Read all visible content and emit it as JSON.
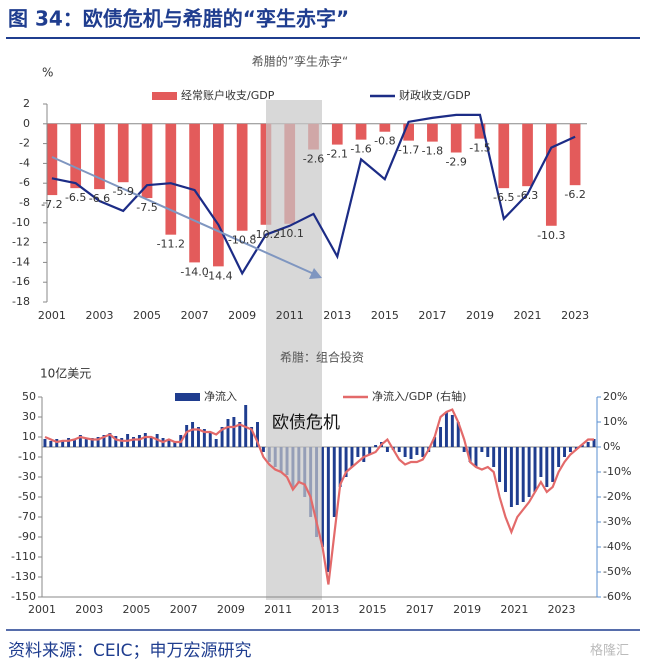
{
  "header": {
    "title": "图 34：欧债危机与希腊的“孪生赤字”"
  },
  "source": "资料来源：CEIC；申万宏源研究",
  "watermark": "格隆汇",
  "chart_data": [
    {
      "type": "bar",
      "title": "希腊的”孪生赤字“",
      "y_label": "%",
      "categories": [
        "2001",
        null,
        "2003",
        null,
        "2005",
        null,
        "2007",
        null,
        "2009",
        null,
        "2011",
        null,
        "2013",
        null,
        "2015",
        null,
        "2017",
        null,
        "2019",
        null,
        "2021",
        null,
        "2023"
      ],
      "ylim": [
        -18,
        2
      ],
      "yticks": [
        2,
        0,
        -2,
        -4,
        -6,
        -8,
        -10,
        -12,
        -14,
        -16,
        -18
      ],
      "series": [
        {
          "name": "经常账户收支/GDP",
          "type": "bar",
          "color": "#e35b5b",
          "values": [
            -7.2,
            -6.5,
            -6.6,
            -5.9,
            -7.5,
            -11.2,
            -14.0,
            -14.4,
            -10.8,
            -10.2,
            -10.1,
            -2.6,
            -2.1,
            -1.6,
            -0.8,
            -1.7,
            -1.8,
            -2.9,
            -1.5,
            -6.5,
            -6.3,
            -10.3,
            -6.2
          ],
          "value_labels": [
            "-7.2",
            "-6.5",
            "-6.6",
            "-5.9",
            "-7.5",
            "-11.2",
            "-14.0",
            "-14.4",
            "-10.8",
            "-10.2",
            "-10.1",
            "-2.6",
            "-2.1",
            "-1.6",
            "-0.8",
            "-1.7",
            "-1.8",
            "-2.9",
            "-1.5",
            "-6.5",
            "-6.3",
            "-10.3",
            "-6.2"
          ]
        },
        {
          "name": "财政收支/GDP",
          "type": "line",
          "color": "#1c2c86",
          "values": [
            -5.5,
            -6.0,
            -7.8,
            -8.8,
            -6.2,
            -6.0,
            -6.7,
            -10.2,
            -15.1,
            -11.2,
            -10.3,
            -9.1,
            -13.4,
            -3.6,
            -5.6,
            0.2,
            0.6,
            0.9,
            0.9,
            -9.6,
            -7.1,
            -2.4,
            -1.3
          ]
        }
      ]
    },
    {
      "type": "bar",
      "title": "希腊：组合投资",
      "y_label": "10亿美元",
      "annotation": "欧债危机",
      "categories": [
        "2001",
        null,
        null,
        null,
        null,
        null,
        null,
        null,
        "2003",
        null,
        null,
        null,
        null,
        null,
        null,
        null,
        "2005",
        null,
        null,
        null,
        null,
        null,
        null,
        null,
        "2007",
        null,
        null,
        null,
        null,
        null,
        null,
        null,
        "2009",
        null,
        null,
        null,
        null,
        null,
        null,
        null,
        "2011",
        null,
        null,
        null,
        null,
        null,
        null,
        null,
        "2013",
        null,
        null,
        null,
        null,
        null,
        null,
        null,
        "2015",
        null,
        null,
        null,
        null,
        null,
        null,
        null,
        "2017",
        null,
        null,
        null,
        null,
        null,
        null,
        null,
        "2019",
        null,
        null,
        null,
        null,
        null,
        null,
        null,
        "2021",
        null,
        null,
        null,
        null,
        null,
        null,
        null,
        "2023",
        null,
        null,
        null,
        null,
        null
      ],
      "ylim": [
        -150,
        50
      ],
      "yticks": [
        50,
        30,
        10,
        -10,
        -30,
        -50,
        -70,
        -90,
        -110,
        -130,
        -150
      ],
      "y2lim": [
        -60,
        20
      ],
      "y2ticks": [
        {
          "value": 20,
          "label": "20%"
        },
        {
          "value": 10,
          "label": "10%"
        },
        {
          "value": 0,
          "label": "0%"
        },
        {
          "value": -10,
          "label": "-10%"
        },
        {
          "value": -20,
          "label": "-20%"
        },
        {
          "value": -30,
          "label": "-30%"
        },
        {
          "value": -40,
          "label": "-40%"
        },
        {
          "value": -50,
          "label": "-50%"
        },
        {
          "value": -60,
          "label": "-60%"
        }
      ],
      "series": [
        {
          "name": "净流入",
          "type": "bar",
          "color": "#1f3d8f",
          "values": [
            8,
            6,
            8,
            7,
            9,
            7,
            12,
            8,
            9,
            10,
            12,
            14,
            11,
            9,
            13,
            10,
            12,
            14,
            10,
            13,
            9,
            8,
            6,
            12,
            22,
            25,
            20,
            18,
            15,
            8,
            20,
            28,
            30,
            25,
            42,
            20,
            25,
            -5,
            -15,
            -20,
            -25,
            -28,
            -40,
            -35,
            -50,
            -70,
            -90,
            -100,
            -125,
            -70,
            -40,
            -30,
            -20,
            -10,
            -15,
            -8,
            2,
            5,
            -5,
            -3,
            -5,
            -10,
            -12,
            -8,
            -10,
            -5,
            10,
            20,
            35,
            32,
            25,
            -5,
            -15,
            -20,
            -5,
            -10,
            -20,
            -35,
            -45,
            -60,
            -58,
            -55,
            -50,
            -45,
            -30,
            -40,
            -35,
            -20,
            -10,
            -5,
            -2,
            2,
            5,
            8
          ]
        },
        {
          "name": "净流入/GDP (右轴)",
          "type": "line",
          "axis": "y2",
          "color": "#e36a6a",
          "values": [
            4,
            3,
            2,
            2.5,
            2.5,
            3,
            4,
            3.5,
            3,
            3,
            4,
            5,
            3,
            2.5,
            2.5,
            3,
            3,
            4,
            4,
            3,
            2,
            3,
            2,
            2,
            6,
            7,
            7,
            6,
            6,
            5,
            7,
            8,
            8,
            9,
            8,
            7,
            2,
            -4,
            -7,
            -9,
            -10,
            -12,
            -17,
            -14,
            -15,
            -20,
            -30,
            -40,
            -55,
            -35,
            -15,
            -10,
            -8,
            -6,
            -4,
            -3,
            -2,
            1,
            3,
            -1,
            -5,
            -7,
            -6,
            -6,
            -5,
            -1,
            4,
            12,
            14,
            15,
            10,
            3,
            -6,
            -8,
            -9,
            -8,
            -10,
            -20,
            -28,
            -34,
            -28,
            -25,
            -22,
            -18,
            -14,
            -18,
            -16,
            -10,
            -6,
            -3,
            -1,
            1,
            3,
            3
          ]
        }
      ]
    }
  ]
}
